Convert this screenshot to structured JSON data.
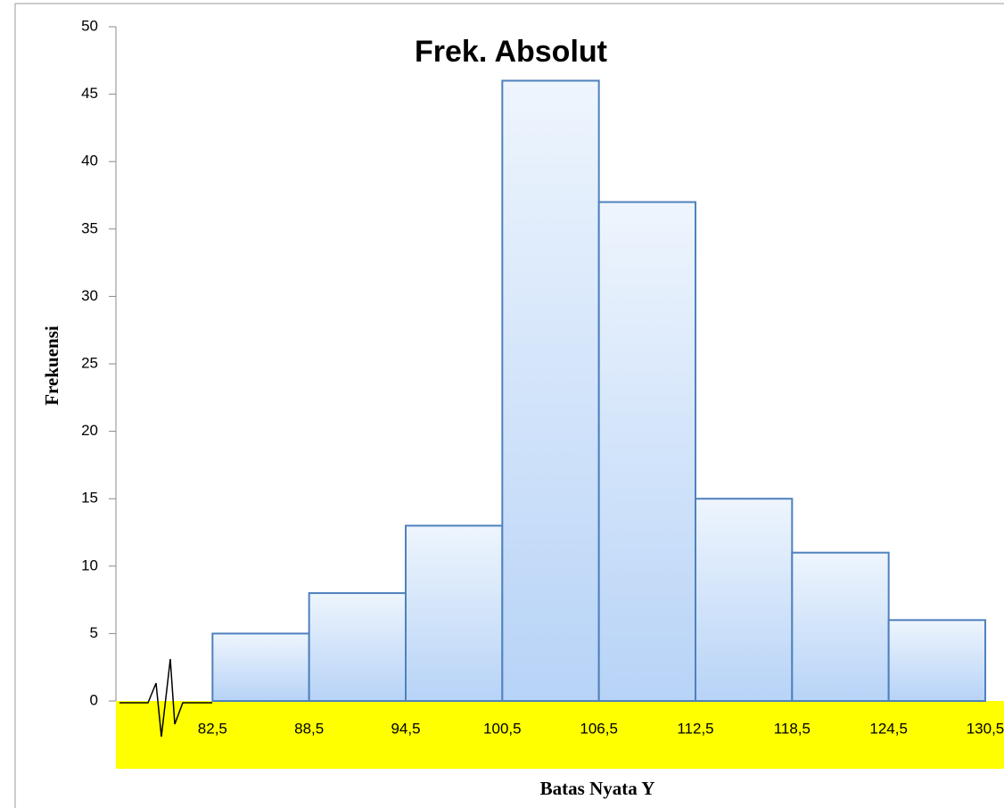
{
  "chart_data": {
    "type": "histogram",
    "title": "Frek. Absolut",
    "x_label": "Batas Nyata Y",
    "y_label": "Frekuensi",
    "bins": [
      82.5,
      88.5,
      94.5,
      100.5,
      106.5,
      112.5,
      118.5,
      124.5,
      130.5
    ],
    "values": [
      5,
      8,
      13,
      46,
      37,
      15,
      11,
      6
    ],
    "color": "#4f81bd",
    "xlim": [
      76.5,
      130.5
    ],
    "xticks": [
      {
        "value": 82.5,
        "label": "82,5"
      },
      {
        "value": 88.5,
        "label": "88,5"
      },
      {
        "value": 94.5,
        "label": "94,5"
      },
      {
        "value": 100.5,
        "label": "100,5"
      },
      {
        "value": 106.5,
        "label": "106,5"
      },
      {
        "value": 112.5,
        "label": "112,5"
      },
      {
        "value": 118.5,
        "label": "118,5"
      },
      {
        "value": 124.5,
        "label": "124,5"
      },
      {
        "value": 130.5,
        "label": "130,5"
      }
    ],
    "ylim": [
      0,
      50
    ],
    "yticks": [
      0,
      5,
      10,
      15,
      20,
      25,
      30,
      35,
      40,
      45,
      50
    ]
  }
}
